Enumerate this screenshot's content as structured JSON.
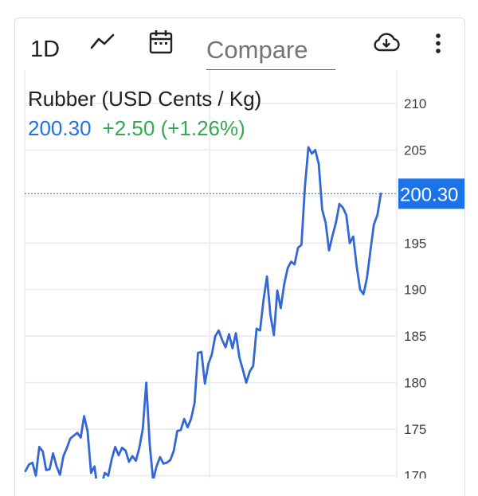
{
  "toolbar": {
    "range_label": "1D",
    "compare_placeholder": "Compare",
    "icons": {
      "chart_type": "line-chart-icon",
      "date": "calendar-icon",
      "download": "download-icon",
      "menu": "more-vert-icon"
    }
  },
  "quote": {
    "title": "Rubber (USD Cents / Kg)",
    "price": "200.30",
    "change": "+2.50",
    "change_pct": "(+1.26%)"
  },
  "colors": {
    "price": "#1a73e8",
    "change": "#34a853",
    "line": "#3367d6",
    "grid": "#e8eaed"
  },
  "chart_data": {
    "type": "line",
    "y_ticks": [
      170,
      175,
      180,
      185,
      190,
      195,
      200,
      205,
      210
    ],
    "ylim": [
      169.7,
      213.5
    ],
    "grid": true,
    "current_price": 200.3,
    "current_price_label": "200.30",
    "series": [
      {
        "values": [
          170.5,
          171.2,
          171.4,
          170.0,
          173.1,
          172.6,
          170.6,
          170.7,
          172.4,
          171.0,
          170.1,
          172.1,
          173.0,
          174.0,
          174.3,
          174.6,
          174.1,
          176.4,
          174.8,
          170.3,
          171.0,
          168.3,
          169.0,
          170.3,
          170.0,
          171.8,
          173.1,
          172.2,
          173.0,
          172.7,
          171.5,
          172.1,
          171.6,
          173.0,
          175.0,
          180.0,
          173.4,
          169.5,
          171.0,
          172.0,
          171.3,
          171.4,
          171.7,
          172.7,
          174.8,
          174.9,
          176.1,
          175.2,
          176.1,
          177.8,
          183.2,
          183.3,
          179.9,
          182.0,
          183.0,
          185.0,
          185.6,
          184.6,
          183.8,
          185.2,
          183.7,
          185.3,
          182.7,
          181.4,
          180.0,
          181.2,
          181.8,
          185.8,
          185.6,
          188.9,
          191.4,
          187.3,
          185.1,
          189.9,
          188.0,
          190.6,
          192.3,
          193.0,
          192.7,
          194.5,
          194.8,
          201.0,
          205.3,
          204.6,
          205.0,
          203.5,
          198.6,
          197.2,
          194.2,
          195.8,
          197.2,
          199.2,
          198.8,
          198.0,
          195.0,
          195.7,
          192.5,
          190.0,
          189.5,
          191.3,
          194.2,
          197.0,
          198.0,
          200.3
        ]
      }
    ]
  }
}
